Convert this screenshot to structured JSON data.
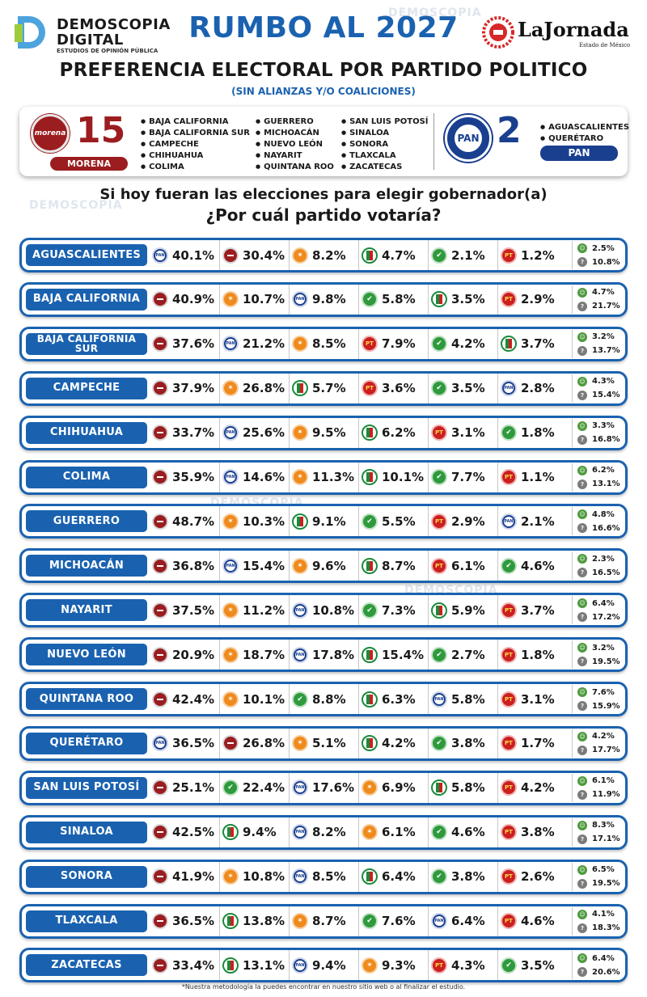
{
  "header": {
    "brand_line1": "DEMOSCOPIA",
    "brand_line2": "DIGITAL",
    "brand_line3": "ESTUDIOS DE OPINIÓN PÚBLICA",
    "title": "RUMBO AL 2027",
    "newspaper": "LaJornada",
    "newspaper_sub": "Estado de México",
    "subtitle": "PREFERENCIA ELECTORAL POR PARTIDO POLITICO",
    "note": "(SIN ALIANZAS Y/O COALICIONES)"
  },
  "summary": {
    "morena": {
      "logo_text": "morena",
      "count": "15",
      "tag": "MORENA",
      "states": [
        "BAJA CALIFORNIA",
        "BAJA CALIFORNIA SUR",
        "CAMPECHE",
        "CHIHUAHUA",
        "COLIMA",
        "GUERRERO",
        "MICHOACÁN",
        "NUEVO LEÓN",
        "NAYARIT",
        "QUINTANA ROO",
        "SAN LUIS POTOSÍ",
        "SINALOA",
        "SONORA",
        "TLAXCALA",
        "ZACATECAS"
      ]
    },
    "pan": {
      "logo_text": "PAN",
      "count": "2",
      "tag": "PAN",
      "states": [
        "AGUASCALIENTES",
        "QUERÉTARO"
      ]
    }
  },
  "question": {
    "line1": "Si hoy fueran las elecciones para elegir gobernador(a)",
    "line2": "¿Por cuál partido votaría?"
  },
  "footnote": "*Nuestra metodología la puedes encontrar en nuestro sitio web o al finalizar el estudio.",
  "icons": {
    "morena": "morena-logo-icon",
    "pan": "pan-logo-icon",
    "mc": "movimiento-ciudadano-logo-icon",
    "pri": "pri-logo-icon",
    "pvem": "pvem-logo-icon",
    "pt": "pt-logo-icon",
    "independiente": "independent-candidate-icon",
    "no_sabe": "question-mark-icon"
  },
  "colors": {
    "primary_blue": "#1a62b0",
    "morena": "#9b1d20",
    "pan": "#1a3f8f",
    "mc": "#ef8a1c",
    "pvem": "#2e9a3c",
    "pt": "#cc1f1f"
  },
  "chart_data": {
    "type": "table",
    "rows": [
      {
        "state": "AGUASCALIENTES",
        "parties": [
          [
            "pan",
            "40.1%"
          ],
          [
            "morena",
            "30.4%"
          ],
          [
            "mc",
            "8.2%"
          ],
          [
            "pri",
            "4.7%"
          ],
          [
            "pvem",
            "2.1%"
          ],
          [
            "pt",
            "1.2%"
          ]
        ],
        "independiente": "2.5%",
        "no_sabe": "10.8%"
      },
      {
        "state": "BAJA CALIFORNIA",
        "parties": [
          [
            "morena",
            "40.9%"
          ],
          [
            "mc",
            "10.7%"
          ],
          [
            "pan",
            "9.8%"
          ],
          [
            "pvem",
            "5.8%"
          ],
          [
            "pri",
            "3.5%"
          ],
          [
            "pt",
            "2.9%"
          ]
        ],
        "independiente": "4.7%",
        "no_sabe": "21.7%"
      },
      {
        "state": "BAJA CALIFORNIA SUR",
        "parties": [
          [
            "morena",
            "37.6%"
          ],
          [
            "pan",
            "21.2%"
          ],
          [
            "mc",
            "8.5%"
          ],
          [
            "pt",
            "7.9%"
          ],
          [
            "pvem",
            "4.2%"
          ],
          [
            "pri",
            "3.7%"
          ]
        ],
        "independiente": "3.2%",
        "no_sabe": "13.7%"
      },
      {
        "state": "CAMPECHE",
        "parties": [
          [
            "morena",
            "37.9%"
          ],
          [
            "mc",
            "26.8%"
          ],
          [
            "pri",
            "5.7%"
          ],
          [
            "pt",
            "3.6%"
          ],
          [
            "pvem",
            "3.5%"
          ],
          [
            "pan",
            "2.8%"
          ]
        ],
        "independiente": "4.3%",
        "no_sabe": "15.4%"
      },
      {
        "state": "CHIHUAHUA",
        "parties": [
          [
            "morena",
            "33.7%"
          ],
          [
            "pan",
            "25.6%"
          ],
          [
            "mc",
            "9.5%"
          ],
          [
            "pri",
            "6.2%"
          ],
          [
            "pt",
            "3.1%"
          ],
          [
            "pvem",
            "1.8%"
          ]
        ],
        "independiente": "3.3%",
        "no_sabe": "16.8%"
      },
      {
        "state": "COLIMA",
        "parties": [
          [
            "morena",
            "35.9%"
          ],
          [
            "pan",
            "14.6%"
          ],
          [
            "mc",
            "11.3%"
          ],
          [
            "pri",
            "10.1%"
          ],
          [
            "pvem",
            "7.7%"
          ],
          [
            "pt",
            "1.1%"
          ]
        ],
        "independiente": "6.2%",
        "no_sabe": "13.1%"
      },
      {
        "state": "GUERRERO",
        "parties": [
          [
            "morena",
            "48.7%"
          ],
          [
            "mc",
            "10.3%"
          ],
          [
            "pri",
            "9.1%"
          ],
          [
            "pvem",
            "5.5%"
          ],
          [
            "pt",
            "2.9%"
          ],
          [
            "pan",
            "2.1%"
          ]
        ],
        "independiente": "4.8%",
        "no_sabe": "16.6%"
      },
      {
        "state": "MICHOACÁN",
        "parties": [
          [
            "morena",
            "36.8%"
          ],
          [
            "pan",
            "15.4%"
          ],
          [
            "mc",
            "9.6%"
          ],
          [
            "pri",
            "8.7%"
          ],
          [
            "pt",
            "6.1%"
          ],
          [
            "pvem",
            "4.6%"
          ]
        ],
        "independiente": "2.3%",
        "no_sabe": "16.5%"
      },
      {
        "state": "NAYARIT",
        "parties": [
          [
            "morena",
            "37.5%"
          ],
          [
            "mc",
            "11.2%"
          ],
          [
            "pan",
            "10.8%"
          ],
          [
            "pvem",
            "7.3%"
          ],
          [
            "pri",
            "5.9%"
          ],
          [
            "pt",
            "3.7%"
          ]
        ],
        "independiente": "6.4%",
        "no_sabe": "17.2%"
      },
      {
        "state": "NUEVO LEÓN",
        "parties": [
          [
            "morena",
            "20.9%"
          ],
          [
            "mc",
            "18.7%"
          ],
          [
            "pan",
            "17.8%"
          ],
          [
            "pri",
            "15.4%"
          ],
          [
            "pvem",
            "2.7%"
          ],
          [
            "pt",
            "1.8%"
          ]
        ],
        "independiente": "3.2%",
        "no_sabe": "19.5%"
      },
      {
        "state": "QUINTANA ROO",
        "parties": [
          [
            "morena",
            "42.4%"
          ],
          [
            "mc",
            "10.1%"
          ],
          [
            "pvem",
            "8.8%"
          ],
          [
            "pri",
            "6.3%"
          ],
          [
            "pan",
            "5.8%"
          ],
          [
            "pt",
            "3.1%"
          ]
        ],
        "independiente": "7.6%",
        "no_sabe": "15.9%"
      },
      {
        "state": "QUERÉTARO",
        "parties": [
          [
            "pan",
            "36.5%"
          ],
          [
            "morena",
            "26.8%"
          ],
          [
            "mc",
            "5.1%"
          ],
          [
            "pri",
            "4.2%"
          ],
          [
            "pvem",
            "3.8%"
          ],
          [
            "pt",
            "1.7%"
          ]
        ],
        "independiente": "4.2%",
        "no_sabe": "17.7%"
      },
      {
        "state": "SAN LUIS POTOSÍ",
        "parties": [
          [
            "morena",
            "25.1%"
          ],
          [
            "pvem",
            "22.4%"
          ],
          [
            "pan",
            "17.6%"
          ],
          [
            "mc",
            "6.9%"
          ],
          [
            "pri",
            "5.8%"
          ],
          [
            "pt",
            "4.2%"
          ]
        ],
        "independiente": "6.1%",
        "no_sabe": "11.9%"
      },
      {
        "state": "SINALOA",
        "parties": [
          [
            "morena",
            "42.5%"
          ],
          [
            "pri",
            "9.4%"
          ],
          [
            "pan",
            "8.2%"
          ],
          [
            "mc",
            "6.1%"
          ],
          [
            "pvem",
            "4.6%"
          ],
          [
            "pt",
            "3.8%"
          ]
        ],
        "independiente": "8.3%",
        "no_sabe": "17.1%"
      },
      {
        "state": "SONORA",
        "parties": [
          [
            "morena",
            "41.9%"
          ],
          [
            "mc",
            "10.8%"
          ],
          [
            "pan",
            "8.5%"
          ],
          [
            "pri",
            "6.4%"
          ],
          [
            "pvem",
            "3.8%"
          ],
          [
            "pt",
            "2.6%"
          ]
        ],
        "independiente": "6.5%",
        "no_sabe": "19.5%"
      },
      {
        "state": "TLAXCALA",
        "parties": [
          [
            "morena",
            "36.5%"
          ],
          [
            "pri",
            "13.8%"
          ],
          [
            "mc",
            "8.7%"
          ],
          [
            "pvem",
            "7.6%"
          ],
          [
            "pan",
            "6.4%"
          ],
          [
            "pt",
            "4.6%"
          ]
        ],
        "independiente": "4.1%",
        "no_sabe": "18.3%"
      },
      {
        "state": "ZACATECAS",
        "parties": [
          [
            "morena",
            "33.4%"
          ],
          [
            "pri",
            "13.1%"
          ],
          [
            "pan",
            "9.4%"
          ],
          [
            "mc",
            "9.3%"
          ],
          [
            "pt",
            "4.3%"
          ],
          [
            "pvem",
            "3.5%"
          ]
        ],
        "independiente": "6.4%",
        "no_sabe": "20.6%"
      }
    ]
  }
}
